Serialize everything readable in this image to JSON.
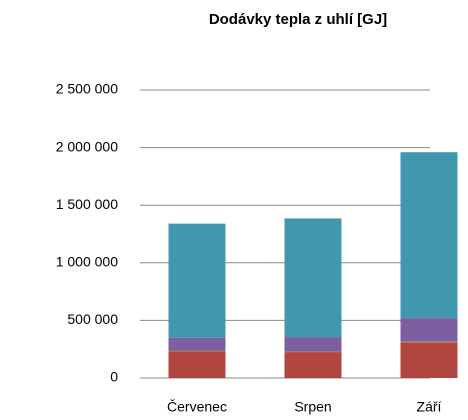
{
  "chart_data": {
    "type": "stacked_bar",
    "title": "Dodávky tepla z uhlí [GJ]",
    "categories": [
      "Červenec",
      "Srpen",
      "Září"
    ],
    "series": [
      {
        "color": "#b0463f",
        "values": [
          230000,
          225000,
          310000
        ]
      },
      {
        "color": "#9aab4f",
        "values": [
          5000,
          5000,
          5000
        ]
      },
      {
        "color": "#7c5fa0",
        "values": [
          115000,
          125000,
          205000
        ]
      },
      {
        "color": "#4198ae",
        "values": [
          990000,
          1030000,
          1440000
        ]
      }
    ],
    "ylim": [
      0,
      2500000
    ],
    "yticks": [
      0,
      {
        "value": 500000,
        "label": "500 000"
      },
      {
        "value": 1000000,
        "label": "1 000 000"
      },
      {
        "value": 1500000,
        "label": "1 500 000"
      },
      {
        "value": 2000000,
        "label": "2 000 000"
      },
      {
        "value": 2500000,
        "label": "2 500 000"
      }
    ],
    "grid": true
  }
}
